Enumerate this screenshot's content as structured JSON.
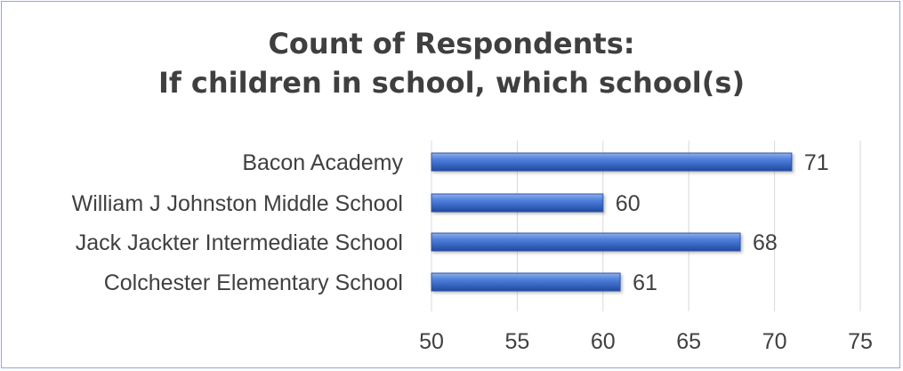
{
  "chart_data": {
    "type": "bar",
    "orientation": "horizontal",
    "title_lines": [
      "Count of Respondents:",
      "If children in school, which school(s)"
    ],
    "categories": [
      "Bacon Academy",
      "William J Johnston Middle School",
      "Jack Jackter Intermediate School",
      "Colchester Elementary School"
    ],
    "values": [
      71,
      60,
      68,
      61
    ],
    "xlim": [
      50,
      75
    ],
    "xticks": [
      50,
      55,
      60,
      65,
      70,
      75
    ],
    "grid": true,
    "legend": "none",
    "bar_color": "#4472c4",
    "data_labels": true
  }
}
